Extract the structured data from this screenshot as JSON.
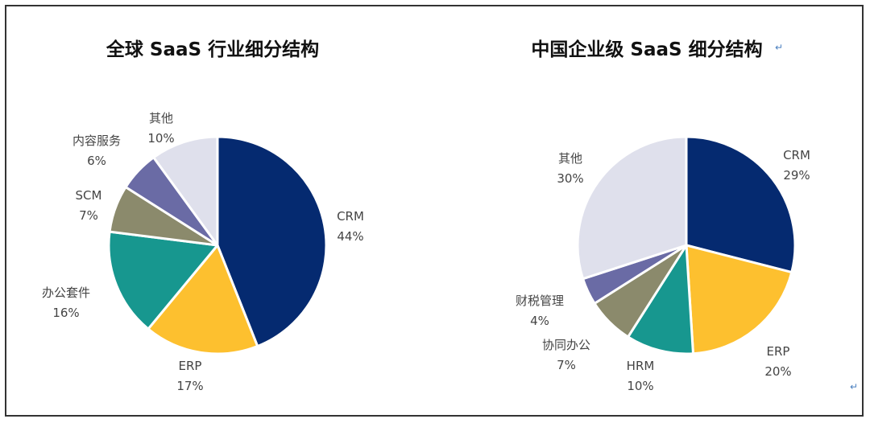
{
  "chart_data": [
    {
      "type": "pie",
      "title": "全球 SaaS 行业细分结构",
      "categories": [
        "CRM",
        "ERP",
        "办公套件",
        "SCM",
        "内容服务",
        "其他"
      ],
      "values": [
        44,
        17,
        16,
        7,
        6,
        10
      ],
      "value_labels": [
        "44%",
        "17%",
        "16%",
        "7%",
        "6%",
        "10%"
      ],
      "colors": [
        "#052A70",
        "#FDC02F",
        "#17978F",
        "#8B8A6C",
        "#6A6BA5",
        "#DFE0EC"
      ]
    },
    {
      "type": "pie",
      "title": "中国企业级 SaaS 细分结构",
      "categories": [
        "CRM",
        "ERP",
        "HRM",
        "协同办公",
        "财税管理",
        "其他"
      ],
      "values": [
        29,
        20,
        10,
        7,
        4,
        30
      ],
      "value_labels": [
        "29%",
        "20%",
        "10%",
        "7%",
        "4%",
        "30%"
      ],
      "colors": [
        "#052A70",
        "#FDC02F",
        "#17978F",
        "#8B8A6C",
        "#6A6BA5",
        "#DFE0EC"
      ]
    }
  ],
  "return_mark": "↵"
}
